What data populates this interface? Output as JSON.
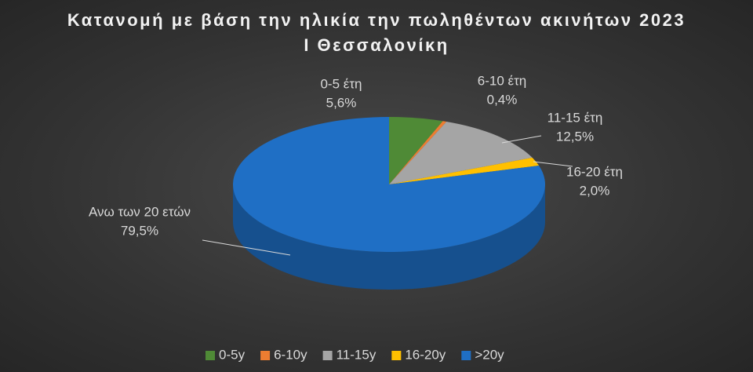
{
  "chart_data": {
    "type": "pie",
    "title": "Κατανομή με βάση την ηλικία την πωληθέντων ακινήτων 2023 Ι Θεσσαλονίκη",
    "categories": [
      "0-5 έτη",
      "6-10 έτη",
      "11-15 έτη",
      "16-20 έτη",
      "Ανω των 20 ετών"
    ],
    "legend_labels": [
      "0-5y",
      "6-10y",
      "11-15y",
      "16-20y",
      ">20y"
    ],
    "values": [
      5.6,
      0.4,
      12.5,
      2.0,
      79.5
    ],
    "value_labels": [
      "5,6%",
      "0,4%",
      "12,5%",
      "2,0%",
      "79,5%"
    ],
    "colors": [
      "#4f8a36",
      "#ed7d31",
      "#a5a5a5",
      "#ffc000",
      "#1f6fc5"
    ]
  }
}
